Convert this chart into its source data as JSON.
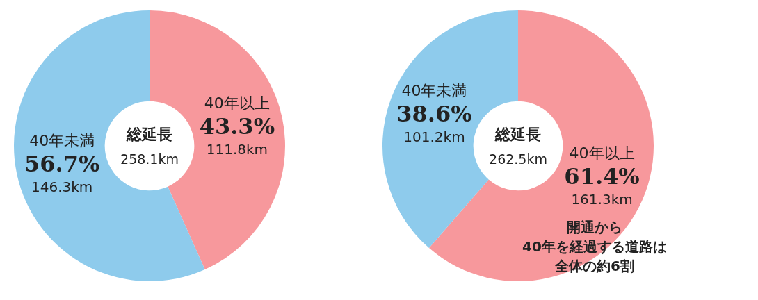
{
  "chart_data": [
    {
      "type": "donut",
      "title": "総延長",
      "subtitle": "258.1km",
      "categories": [
        "40年以上",
        "40年未満"
      ],
      "values": [
        43.3,
        56.7
      ],
      "colors": [
        "#f7989c",
        "#8ecbec"
      ],
      "value_labels": [
        "43.3%",
        "56.7%"
      ],
      "annotations": [
        "111.8km",
        "146.3km"
      ]
    },
    {
      "type": "donut",
      "title": "総延長",
      "subtitle": "262.5km",
      "categories": [
        "40年以上",
        "40年未満"
      ],
      "values": [
        61.4,
        38.6
      ],
      "colors": [
        "#f7989c",
        "#8ecbec"
      ],
      "value_labels": [
        "61.4%",
        "38.6%"
      ],
      "annotations": [
        "161.3km",
        "101.2km",
        "開通から",
        "40年を経過する道路は",
        "全体の約6割"
      ]
    }
  ]
}
